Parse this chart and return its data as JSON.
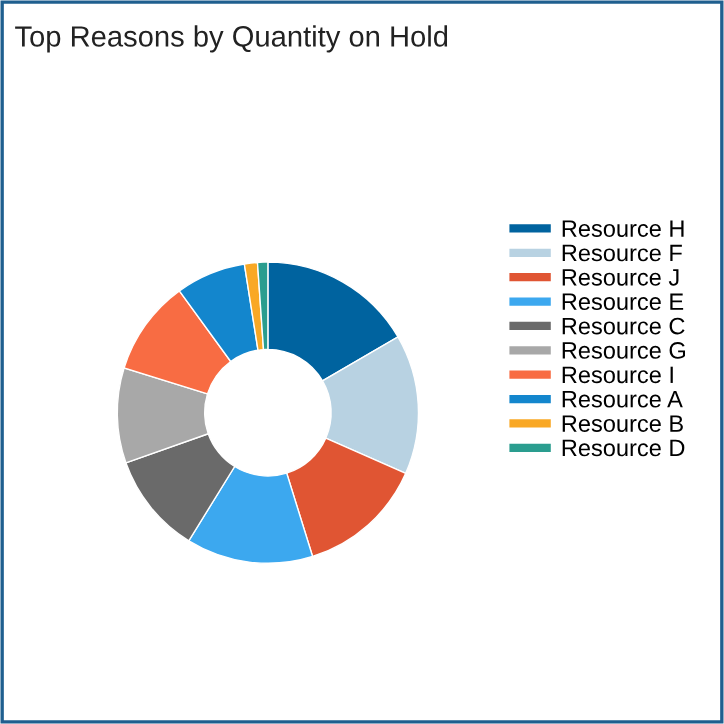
{
  "chart_data": {
    "type": "donut",
    "title": "Top Reasons by Quantity on Hold",
    "categories": [
      "Resource H",
      "Resource F",
      "Resource J",
      "Resource E",
      "Resource C",
      "Resource G",
      "Resource I",
      "Resource A",
      "Resource B",
      "Resource D"
    ],
    "values": [
      16.6,
      15,
      13.6,
      13.6,
      10.8,
      10.2,
      10.2,
      7.5,
      1.4,
      1.1
    ],
    "colors": [
      "#00639f",
      "#b8d2e2",
      "#e05533",
      "#3ca8ef",
      "#6a6a6a",
      "#a8a8a8",
      "#f86c43",
      "#1386cd",
      "#f9a825",
      "#2a9d8f"
    ],
    "legend": "right"
  }
}
